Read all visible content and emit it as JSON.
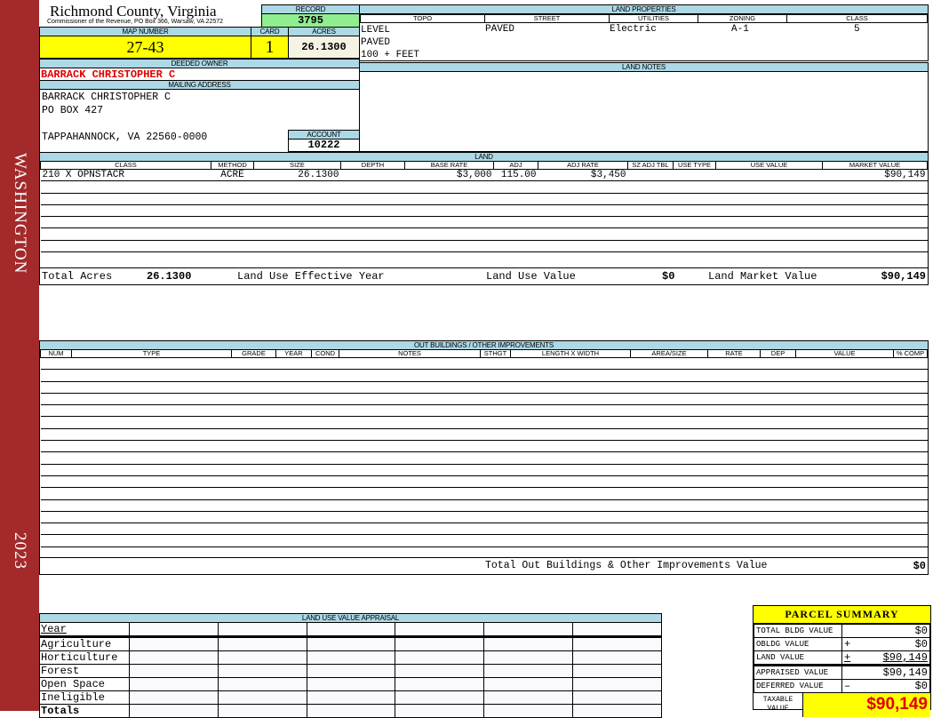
{
  "sidebar": {
    "district": "WASHINGTON",
    "year": "2023",
    "color": "#a3292b"
  },
  "header": {
    "title": "Richmond County, Virginia",
    "subtitle": "Commissioner of the Revenue, PO Box 366, Warsaw, VA 22572"
  },
  "record": {
    "label": "RECORD",
    "value": "3795"
  },
  "map": {
    "label": "MAP NUMBER",
    "value": "27-43"
  },
  "card": {
    "label": "CARD",
    "value": "1"
  },
  "acres": {
    "label": "ACRES",
    "value": "26.1300"
  },
  "owner": {
    "label": "DEEDED OWNER",
    "name": "BARRACK CHRISTOPHER C"
  },
  "mailing": {
    "label": "MAILING ADDRESS",
    "lines": [
      "BARRACK CHRISTOPHER C",
      "PO BOX 427",
      "",
      "TAPPAHANNOCK, VA 22560-0000"
    ]
  },
  "account": {
    "label": "ACCOUNT",
    "value": "10222"
  },
  "land_properties": {
    "label": "LAND PROPERTIES",
    "columns": [
      "TOPO",
      "STREET",
      "UTILITIES",
      "ZONING",
      "CLASS"
    ],
    "topo": [
      "LEVEL",
      "PAVED",
      "100 + FEET"
    ],
    "street": "PAVED",
    "utilities": "Electric",
    "zoning": "A-1",
    "class": "5"
  },
  "land_notes": {
    "label": "LAND NOTES"
  },
  "land": {
    "label": "LAND",
    "columns": [
      "CLASS",
      "METHOD",
      "SIZE",
      "DEPTH",
      "BASE RATE",
      "ADJ",
      "ADJ RATE",
      "SZ ADJ TBL",
      "USE TYPE",
      "USE VALUE",
      "MARKET VALUE"
    ],
    "rows": [
      [
        "210 X OPNSTACR",
        "ACRE",
        "26.1300",
        "",
        "$3,000",
        "115.00",
        "$3,450",
        "",
        "",
        "",
        "$90,149"
      ]
    ],
    "totals": {
      "acres_label": "Total Acres",
      "acres": "26.1300",
      "year_label": "Land Use Effective Year",
      "year": "",
      "use_label": "Land Use Value",
      "use": "$0",
      "market_label": "Land Market Value",
      "market": "$90,149"
    }
  },
  "outbuildings": {
    "label": "OUT BUILDINGS / OTHER IMPROVEMENTS",
    "columns": [
      "NUM",
      "TYPE",
      "GRADE",
      "YEAR",
      "COND",
      "NOTES",
      "STHGT",
      "LENGTH X WIDTH",
      "AREA/SIZE",
      "RATE",
      "DEP",
      "VALUE",
      "% COMP"
    ],
    "total_label": "Total Out Buildings & Other Improvements Value",
    "total": "$0"
  },
  "land_use": {
    "label": "LAND USE VALUE APPRAISAL",
    "rows": [
      "Year",
      "Agriculture",
      "Horticulture",
      "Forest",
      "Open Space",
      "Ineligible",
      "Totals"
    ]
  },
  "parcel_summary": {
    "title": "PARCEL SUMMARY",
    "rows": [
      {
        "label": "TOTAL BLDG VALUE",
        "op": "",
        "value": "$0"
      },
      {
        "label": "OBLDG VALUE",
        "op": "+",
        "value": "$0"
      },
      {
        "label": "LAND VALUE",
        "op": "+",
        "value": "$90,149"
      },
      {
        "label": "APPRAISED VALUE",
        "op": "",
        "value": "$90,149"
      },
      {
        "label": "DEFERRED VALUE",
        "op": "–",
        "value": "$0"
      }
    ],
    "taxable_label": "TAXABLE VALUE",
    "taxable": "$90,149"
  },
  "colors": {
    "header_bg": "#add8e6",
    "highlight": "#ffff00",
    "record_bg": "#90ee90",
    "owner_red": "#e00000"
  }
}
